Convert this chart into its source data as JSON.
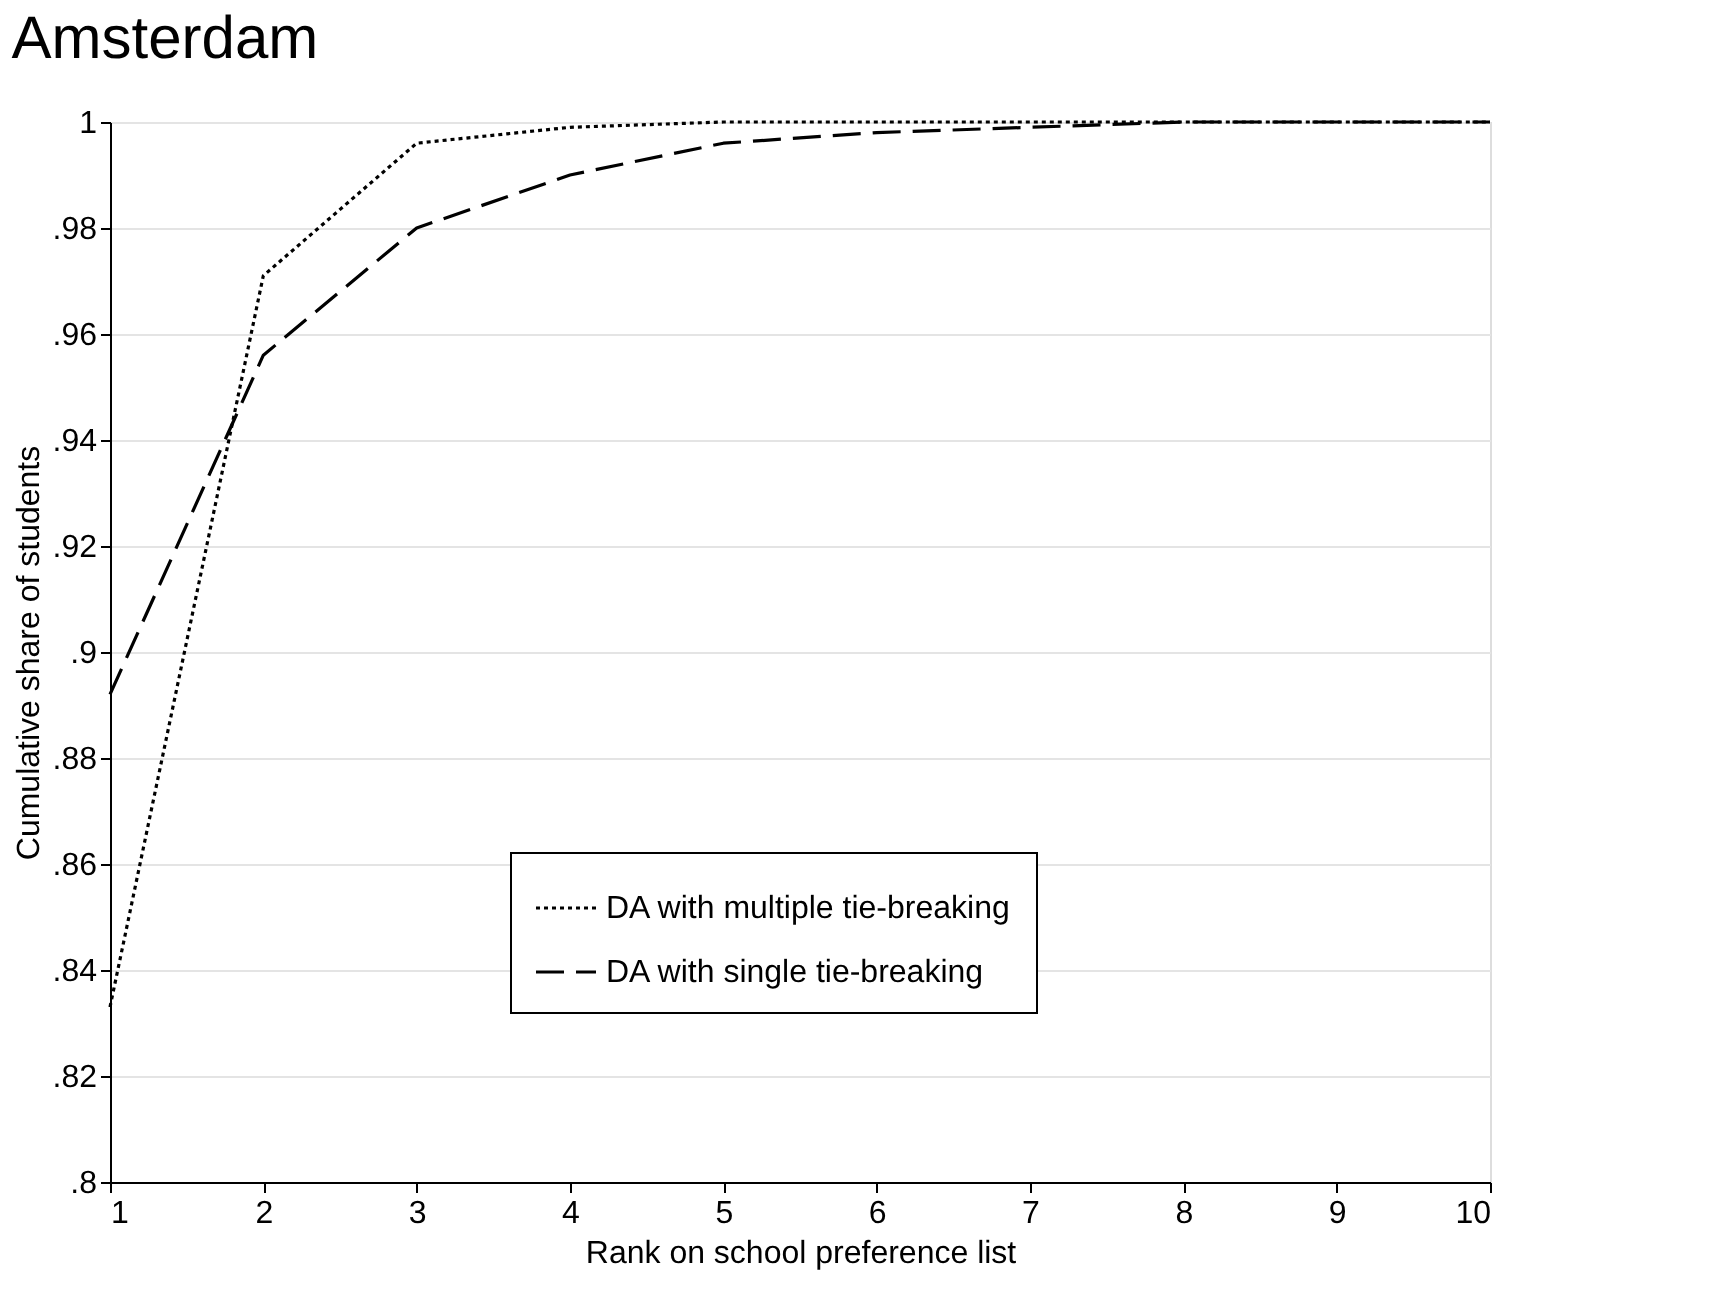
{
  "chart_data": {
    "type": "line",
    "title": "Amsterdam",
    "xlabel": "Rank on school preference list",
    "ylabel": "Cumulative share of students",
    "x": [
      1,
      2,
      3,
      4,
      5,
      6,
      7,
      8,
      9,
      10
    ],
    "series": [
      {
        "name": "DA with multiple tie-breaking",
        "color": "#000000",
        "line_style": "dotted",
        "values": [
          0.833,
          0.971,
          0.996,
          0.999,
          1.0,
          1.0,
          1.0,
          1.0,
          1.0,
          1.0
        ]
      },
      {
        "name": "DA with single tie-breaking",
        "color": "#000000",
        "line_style": "dashed",
        "values": [
          0.892,
          0.956,
          0.98,
          0.99,
          0.996,
          0.998,
          0.999,
          1.0,
          1.0,
          1.0
        ]
      }
    ],
    "xlim": [
      1,
      10
    ],
    "xticks": [
      1,
      2,
      3,
      4,
      5,
      6,
      7,
      8,
      9,
      10
    ],
    "ylim": [
      0.8,
      1.0
    ],
    "yticks": [
      {
        "value": 0.8,
        "label": ".8"
      },
      {
        "value": 0.82,
        "label": ".82"
      },
      {
        "value": 0.84,
        "label": ".84"
      },
      {
        "value": 0.86,
        "label": ".86"
      },
      {
        "value": 0.88,
        "label": ".88"
      },
      {
        "value": 0.9,
        "label": ".9"
      },
      {
        "value": 0.92,
        "label": ".92"
      },
      {
        "value": 0.94,
        "label": ".94"
      },
      {
        "value": 0.96,
        "label": ".96"
      },
      {
        "value": 0.98,
        "label": ".98"
      },
      {
        "value": 1.0,
        "label": "1"
      }
    ],
    "grid": "y",
    "legend": "bottom",
    "marker": "none"
  }
}
